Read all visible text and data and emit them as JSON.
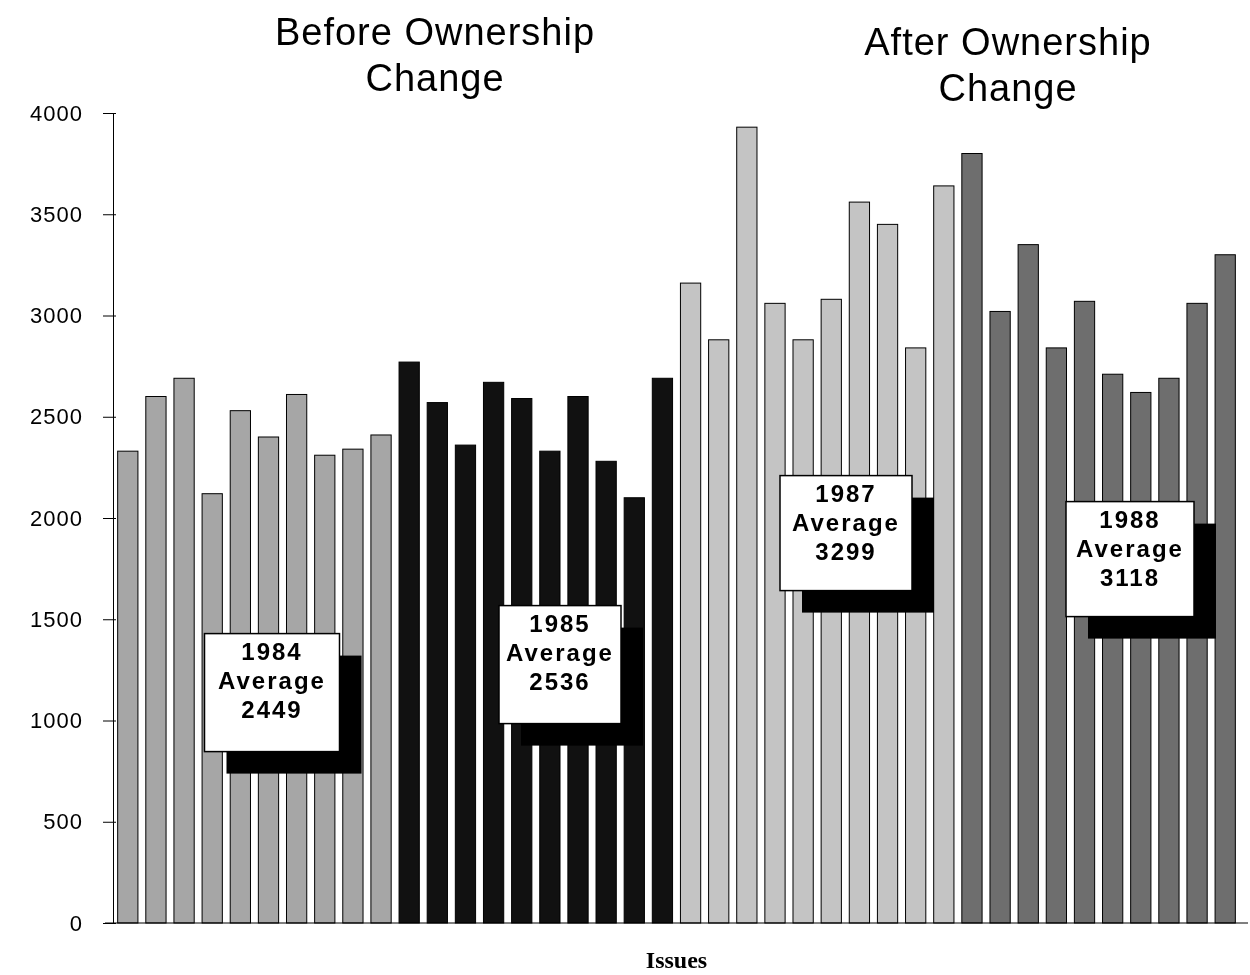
{
  "chart_data": {
    "type": "bar",
    "categories": [
      null,
      null,
      null,
      null,
      null,
      null,
      null,
      null,
      null,
      null,
      null,
      null,
      null,
      null,
      null,
      null,
      null,
      null,
      null,
      null,
      null,
      null,
      null,
      null,
      null,
      null,
      null,
      null,
      null,
      null,
      null,
      null,
      null,
      null,
      null,
      null,
      null,
      null,
      null,
      null
    ],
    "values": [
      2330,
      2600,
      2690,
      2120,
      2530,
      2400,
      2610,
      2310,
      2340,
      2410,
      2770,
      2570,
      2360,
      2670,
      2590,
      2330,
      2600,
      2280,
      2100,
      2690,
      3160,
      2880,
      3930,
      3060,
      2880,
      3080,
      3560,
      3450,
      2840,
      3640,
      3800,
      3020,
      3350,
      2840,
      3070,
      2710,
      2620,
      2690,
      3060,
      3300
    ],
    "colors": [
      "#a6a6a6",
      "#a6a6a6",
      "#a6a6a6",
      "#a6a6a6",
      "#a6a6a6",
      "#a6a6a6",
      "#a6a6a6",
      "#a6a6a6",
      "#a6a6a6",
      "#a6a6a6",
      "#111111",
      "#111111",
      "#111111",
      "#111111",
      "#111111",
      "#111111",
      "#111111",
      "#111111",
      "#111111",
      "#111111",
      "#c4c4c4",
      "#c4c4c4",
      "#c4c4c4",
      "#c4c4c4",
      "#c4c4c4",
      "#c4c4c4",
      "#c4c4c4",
      "#c4c4c4",
      "#c4c4c4",
      "#c4c4c4",
      "#6e6e6e",
      "#6e6e6e",
      "#6e6e6e",
      "#6e6e6e",
      "#6e6e6e",
      "#6e6e6e",
      "#6e6e6e",
      "#6e6e6e",
      "#6e6e6e",
      "#6e6e6e"
    ],
    "xlabel": "Issues",
    "ylim": [
      0,
      4000
    ],
    "yticks": [
      0,
      500,
      1000,
      1500,
      2000,
      2500,
      3000,
      3500,
      4000
    ],
    "annotations": [
      "Before Ownership\nChange",
      "After Ownership\nChange",
      "1984\nAverage\n2449",
      "1985\nAverage\n2536",
      "1987\nAverage\n3299",
      "1988\nAverage\n3118"
    ]
  }
}
